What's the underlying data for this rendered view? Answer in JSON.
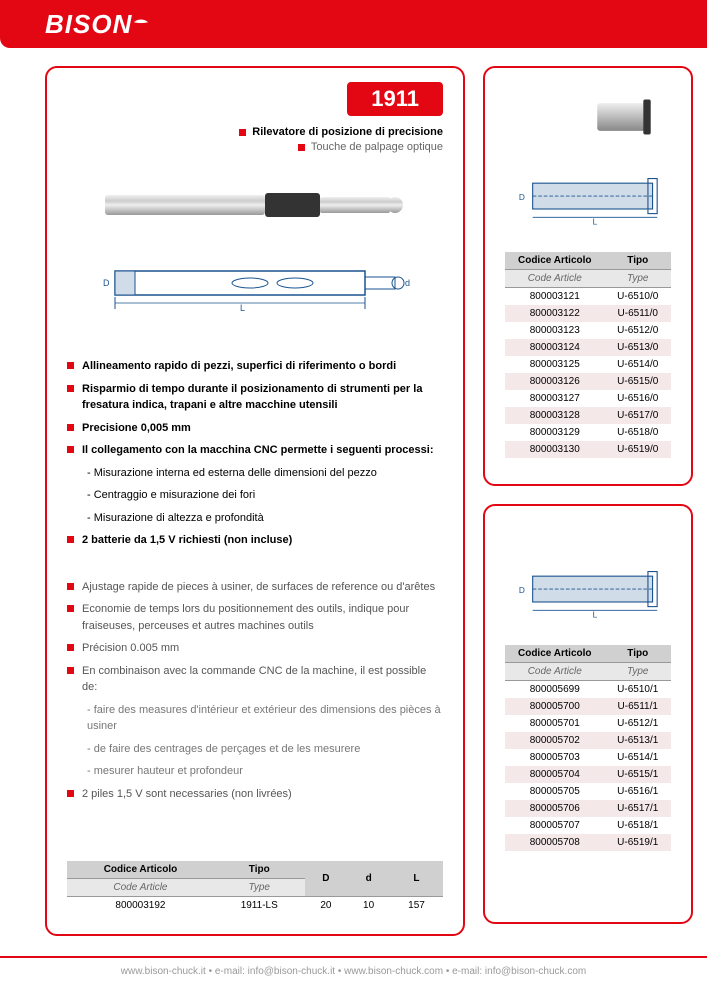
{
  "brand": "BISON",
  "product": {
    "code": "1911",
    "title_it": "Rilevatore di posizione di precisione",
    "title_fr": "Touche de palpage optique"
  },
  "features_it": [
    {
      "text": "Allineamento rapido di pezzi, superfici di riferimento o bordi",
      "bold": true
    },
    {
      "text": "Risparmio di tempo durante il posizionamento di strumenti per la fresatura indica, trapani e altre macchine utensili",
      "bold": true
    },
    {
      "text": "Precisione 0,005 mm",
      "bold": true
    },
    {
      "text": "Il collegamento con la macchina CNC permette i seguenti processi:",
      "bold": true
    },
    {
      "text": "- Misurazione interna ed esterna delle dimensioni del pezzo",
      "sub": true
    },
    {
      "text": "- Centraggio e misurazione dei fori",
      "sub": true
    },
    {
      "text": "- Misurazione di altezza e profondità",
      "sub": true
    },
    {
      "text": "2 batterie da 1,5 V richiesti (non incluse)",
      "bold": true
    }
  ],
  "features_fr": [
    {
      "text": "Ajustage rapide de pieces à usiner, de surfaces de reference ou d'arêtes"
    },
    {
      "text": "Economie de temps lors du positionnement des outils, indique pour fraiseuses, perceuses et autres machines outils"
    },
    {
      "text": "Précision 0.005 mm"
    },
    {
      "text": "En combinaison avec la commande CNC de la machine, il est possible de:"
    },
    {
      "text": "- faire des measures d'intérieur et extérieur des dimensions des pièces à usiner",
      "sub": true
    },
    {
      "text": "- de faire des centrages de perçages et de les mesurere",
      "sub": true
    },
    {
      "text": "- mesurer hauteur et profondeur",
      "sub": true
    },
    {
      "text": "2 piles 1,5 V sont necessaries (non livrées)"
    }
  ],
  "main_table": {
    "headers": [
      "Codice Articolo",
      "Tipo",
      "D",
      "d",
      "L"
    ],
    "subheaders": [
      "Code Article",
      "Type",
      "",
      "",
      ""
    ],
    "rows": [
      [
        "800003192",
        "1911-LS",
        "20",
        "10",
        "157"
      ]
    ]
  },
  "side_table1": {
    "headers": [
      "Codice Articolo",
      "Tipo"
    ],
    "subheaders": [
      "Code Article",
      "Type"
    ],
    "rows": [
      [
        "800003121",
        "U-6510/0"
      ],
      [
        "800003122",
        "U-6511/0"
      ],
      [
        "800003123",
        "U-6512/0"
      ],
      [
        "800003124",
        "U-6513/0"
      ],
      [
        "800003125",
        "U-6514/0"
      ],
      [
        "800003126",
        "U-6515/0"
      ],
      [
        "800003127",
        "U-6516/0"
      ],
      [
        "800003128",
        "U-6517/0"
      ],
      [
        "800003129",
        "U-6518/0"
      ],
      [
        "800003130",
        "U-6519/0"
      ]
    ]
  },
  "side_table2": {
    "headers": [
      "Codice Articolo",
      "Tipo"
    ],
    "subheaders": [
      "Code Article",
      "Type"
    ],
    "rows": [
      [
        "800005699",
        "U-6510/1"
      ],
      [
        "800005700",
        "U-6511/1"
      ],
      [
        "800005701",
        "U-6512/1"
      ],
      [
        "800005702",
        "U-6513/1"
      ],
      [
        "800005703",
        "U-6514/1"
      ],
      [
        "800005704",
        "U-6515/1"
      ],
      [
        "800005705",
        "U-6516/1"
      ],
      [
        "800005706",
        "U-6517/1"
      ],
      [
        "800005707",
        "U-6518/1"
      ],
      [
        "800005708",
        "U-6519/1"
      ]
    ]
  },
  "footer": {
    "text1": "www.bison-chuck.it",
    "text2": "e-mail: info@bison-chuck.it",
    "text3": "www.bison-chuck.com",
    "text4": "e-mail: info@bison-chuck.com",
    "sep": " • "
  },
  "diagram_labels": {
    "D": "D",
    "L": "L",
    "d": "d"
  },
  "colors": {
    "brand_red": "#e30613",
    "table_header": "#d0d0d0",
    "table_subheader": "#e8e8e8",
    "row_odd": "#f5e8e8"
  }
}
